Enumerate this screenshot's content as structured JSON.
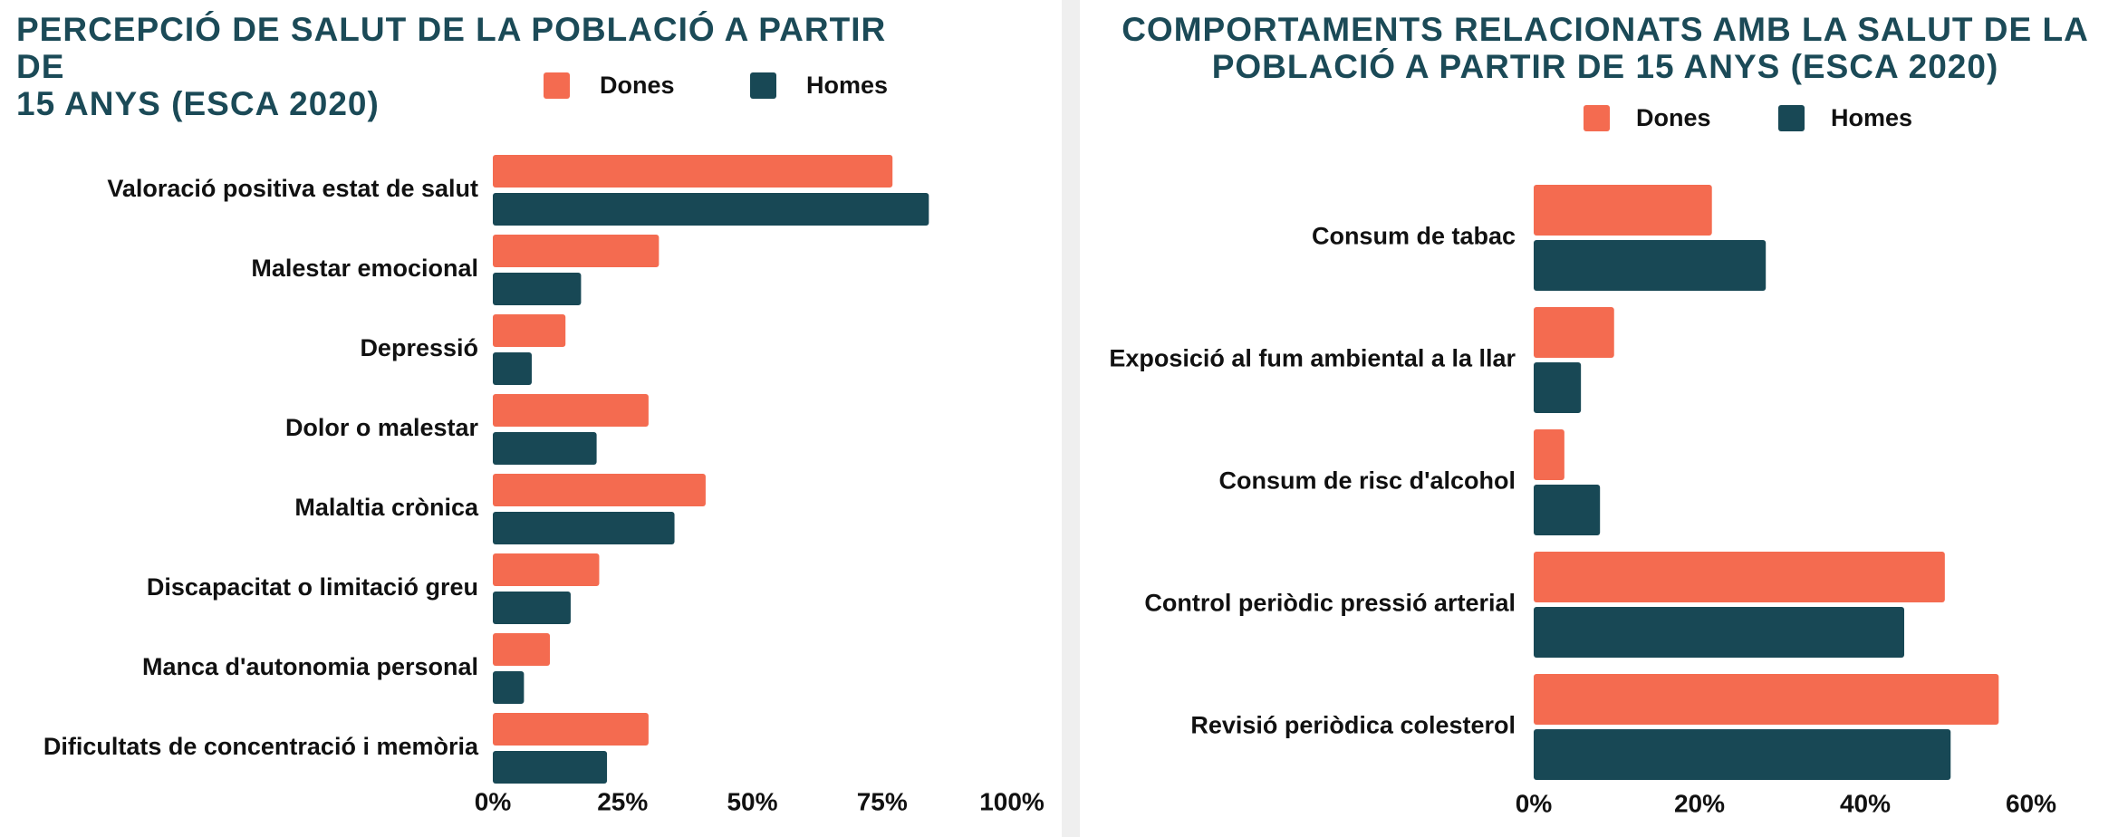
{
  "colors": {
    "dones": "#f46b50",
    "homes": "#184855",
    "title": "#1b4a57",
    "divider": "#efefef"
  },
  "chart_data": [
    {
      "type": "bar",
      "orientation": "horizontal",
      "title": "PERCEPCIÓ DE SALUT DE LA POBLACIÓ A PARTIR DE 15 ANYS (ESCA 2020)",
      "title_lines": [
        "PERCEPCIÓ DE SALUT DE LA POBLACIÓ A PARTIR DE",
        "15 ANYS (ESCA 2020)"
      ],
      "legend": [
        "Dones",
        "Homes"
      ],
      "legend_position": "top-right",
      "categories": [
        "Valoració positiva estat de salut",
        "Malestar emocional",
        "Depressió",
        "Dolor o malestar",
        "Malaltia crònica",
        "Discapacitat o limitació greu",
        "Manca d'autonomia personal",
        "Dificultats de concentració i memòria"
      ],
      "series": [
        {
          "name": "Dones",
          "values": [
            77,
            32,
            14,
            30,
            41,
            20.5,
            11,
            30
          ]
        },
        {
          "name": "Homes",
          "values": [
            84,
            17,
            7.5,
            20,
            35,
            15,
            6,
            22
          ]
        }
      ],
      "xlim": [
        0,
        100
      ],
      "xticks": [
        0,
        25,
        50,
        75,
        100
      ],
      "xtick_labels": [
        "0%",
        "25%",
        "50%",
        "75%",
        "100%"
      ],
      "xlabel": "",
      "ylabel": "",
      "grid": false
    },
    {
      "type": "bar",
      "orientation": "horizontal",
      "title": "COMPORTAMENTS RELACIONATS AMB LA SALUT DE LA POBLACIÓ A PARTIR DE 15 ANYS (ESCA 2020)",
      "title_lines": [
        "COMPORTAMENTS RELACIONATS AMB LA SALUT DE LA",
        "POBLACIÓ A PARTIR DE 15 ANYS (ESCA 2020)"
      ],
      "legend": [
        "Dones",
        "Homes"
      ],
      "legend_position": "top",
      "categories": [
        "Consum de tabac",
        "Exposició al fum ambiental a la llar",
        "Consum de risc d'alcohol",
        "Control periòdic pressió arterial",
        "Revisió periòdica colesterol"
      ],
      "series": [
        {
          "name": "Dones",
          "values": [
            21.5,
            9.7,
            3.7,
            49.6,
            56.1
          ]
        },
        {
          "name": "Homes",
          "values": [
            28,
            5.7,
            8,
            44.7,
            50.3
          ]
        }
      ],
      "xlim": [
        0,
        60
      ],
      "xticks": [
        0,
        20,
        40,
        60
      ],
      "xtick_labels": [
        "0%",
        "20%",
        "40%",
        "60%"
      ],
      "xlabel": "",
      "ylabel": "",
      "grid": false
    }
  ]
}
